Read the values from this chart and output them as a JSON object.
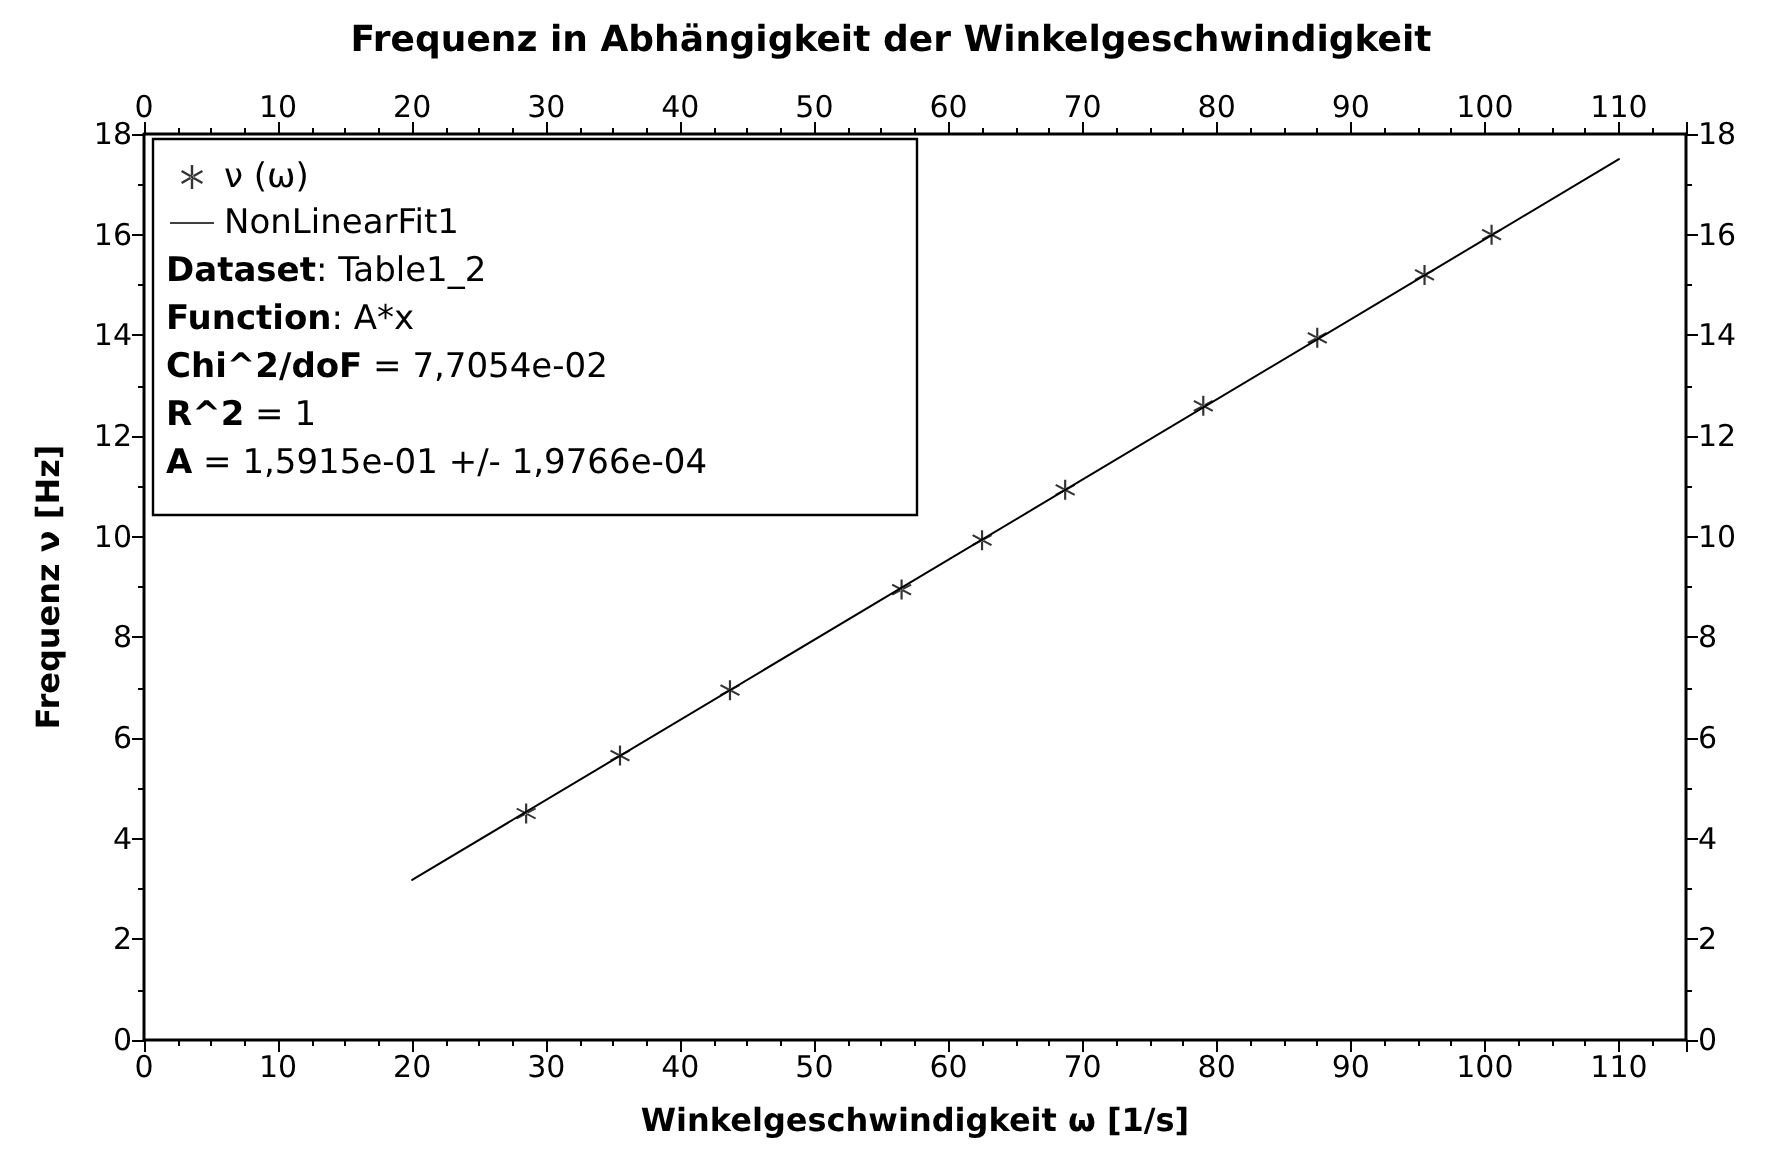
{
  "chart_data": {
    "type": "scatter",
    "title": "Frequenz in Abhängigkeit der Winkelgeschwindigkeit",
    "xlabel": "Winkelgeschwindigkeit ω [1/s]",
    "ylabel": "Frequenz ν [Hz]",
    "xlim": [
      0,
      115
    ],
    "xticks": [
      0,
      10,
      20,
      30,
      40,
      50,
      60,
      70,
      80,
      90,
      100,
      110
    ],
    "x2lim": [
      0,
      115
    ],
    "x2ticks": [
      0,
      10,
      20,
      30,
      40,
      50,
      60,
      70,
      80,
      90,
      100,
      110
    ],
    "ylim": [
      0,
      18
    ],
    "yticks": [
      0,
      2,
      4,
      6,
      8,
      10,
      12,
      14,
      16,
      18
    ],
    "y2lim": [
      0,
      18
    ],
    "y2ticks": [
      0,
      2,
      4,
      6,
      8,
      10,
      12,
      14,
      16,
      18
    ],
    "grid": false,
    "legend": "top left",
    "series": [
      {
        "name": "ν (ω)",
        "marker": "cross",
        "color": "#000000",
        "x": [
          28.5,
          35.5,
          43.7,
          56.5,
          62.5,
          68.7,
          79,
          87.5,
          95.5,
          100.5
        ],
        "values": [
          4.5,
          5.65,
          6.95,
          8.95,
          9.93,
          10.93,
          12.6,
          13.95,
          15.2,
          16
        ]
      },
      {
        "name": "NonLinearFit1",
        "type": "line",
        "marker": "none",
        "line_style": "solid",
        "color": "#000000",
        "x": [
          20,
          110
        ],
        "values": [
          3.18,
          17.5
        ]
      }
    ],
    "annotations": [
      "Dataset: Table1_2",
      "Function: A*x",
      "Chi^2/doF = 7,7054e-02",
      "R^2 = 1",
      "A = 1,5915e-01 +/- 1,9766e-04"
    ]
  }
}
